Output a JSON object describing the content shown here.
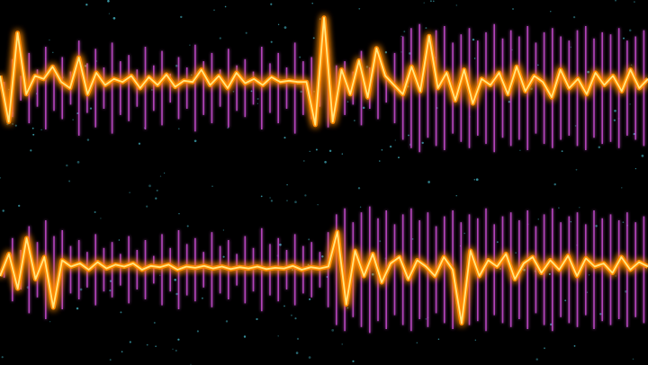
{
  "scene": {
    "background": "#000000",
    "bar_color": "#c04bc8",
    "bar_glow": "#e070e8",
    "wave_core": "#ffe680",
    "wave_glow": "#ff8a00",
    "dot_color": "#3fa7b5"
  },
  "waveforms": [
    {
      "id": "top",
      "bars": [
        6,
        28,
        12,
        34,
        18,
        40,
        22,
        30,
        16,
        46,
        24,
        38,
        20,
        44,
        26,
        32,
        18,
        40,
        22,
        36,
        14,
        30,
        20,
        42,
        26,
        34,
        18,
        38,
        22,
        28,
        16,
        40,
        24,
        34,
        20,
        44,
        26,
        30,
        18,
        38,
        22,
        26,
        16,
        36,
        20,
        30,
        14,
        34,
        50,
        58,
        62,
        48,
        56,
        60,
        44,
        52,
        58,
        46,
        54,
        62,
        48,
        56,
        50,
        60,
        44,
        54,
        58,
        50,
        46,
        56,
        60,
        48,
        54,
        52,
        58,
        46,
        50,
        56
      ],
      "wave": [
        0.2,
        -0.55,
        0.9,
        -0.1,
        0.2,
        0.15,
        0.35,
        0.1,
        0.0,
        0.5,
        -0.1,
        0.25,
        0.05,
        0.15,
        0.1,
        0.2,
        0.0,
        0.18,
        0.05,
        0.22,
        0.02,
        0.12,
        0.1,
        0.3,
        0.05,
        0.2,
        0.0,
        0.25,
        0.08,
        0.15,
        0.05,
        0.18,
        0.1,
        0.12,
        0.1,
        0.1,
        -0.6,
        1.15,
        -0.55,
        0.3,
        -0.1,
        0.45,
        -0.15,
        0.65,
        0.2,
        0.05,
        -0.1,
        0.35,
        -0.05,
        0.85,
        0.0,
        0.25,
        -0.2,
        0.3,
        -0.25,
        0.15,
        0.05,
        0.25,
        -0.1,
        0.35,
        -0.05,
        0.2,
        0.1,
        -0.15,
        0.3,
        0.0,
        0.15,
        -0.1,
        0.25,
        0.05,
        0.2,
        -0.05,
        0.3,
        0.0,
        0.15
      ]
    },
    {
      "id": "bottom",
      "bars": [
        8,
        32,
        20,
        44,
        28,
        50,
        34,
        40,
        24,
        30,
        18,
        36,
        22,
        28,
        16,
        34,
        20,
        30,
        14,
        36,
        22,
        40,
        26,
        32,
        18,
        38,
        24,
        30,
        16,
        34,
        22,
        42,
        26,
        32,
        20,
        36,
        24,
        28,
        18,
        38,
        56,
        62,
        48,
        58,
        64,
        52,
        60,
        46,
        56,
        62,
        50,
        58,
        44,
        54,
        60,
        48,
        56,
        52,
        62,
        46,
        54,
        58,
        50,
        60,
        44,
        56,
        62,
        48,
        54,
        58,
        46,
        60,
        52,
        56,
        50,
        58,
        48,
        54
      ],
      "wave": [
        -0.1,
        0.25,
        -0.3,
        0.5,
        -0.15,
        0.2,
        -0.6,
        0.15,
        0.05,
        0.1,
        0.0,
        0.12,
        0.02,
        0.08,
        0.05,
        0.1,
        0.0,
        0.06,
        0.04,
        0.08,
        0.0,
        0.05,
        0.03,
        0.06,
        0.02,
        0.05,
        0.01,
        0.04,
        0.02,
        0.05,
        0.01,
        0.03,
        0.02,
        0.06,
        0.0,
        0.04,
        0.02,
        0.05,
        0.6,
        -0.55,
        0.3,
        -0.1,
        0.25,
        -0.2,
        0.1,
        0.2,
        -0.15,
        0.15,
        0.05,
        -0.1,
        0.2,
        0.0,
        -0.85,
        0.3,
        -0.1,
        0.15,
        0.05,
        0.25,
        -0.15,
        0.1,
        0.2,
        -0.05,
        0.15,
        0.0,
        0.22,
        -0.1,
        0.18,
        0.05,
        0.1,
        -0.05,
        0.2,
        0.0,
        0.12,
        0.05
      ]
    }
  ]
}
